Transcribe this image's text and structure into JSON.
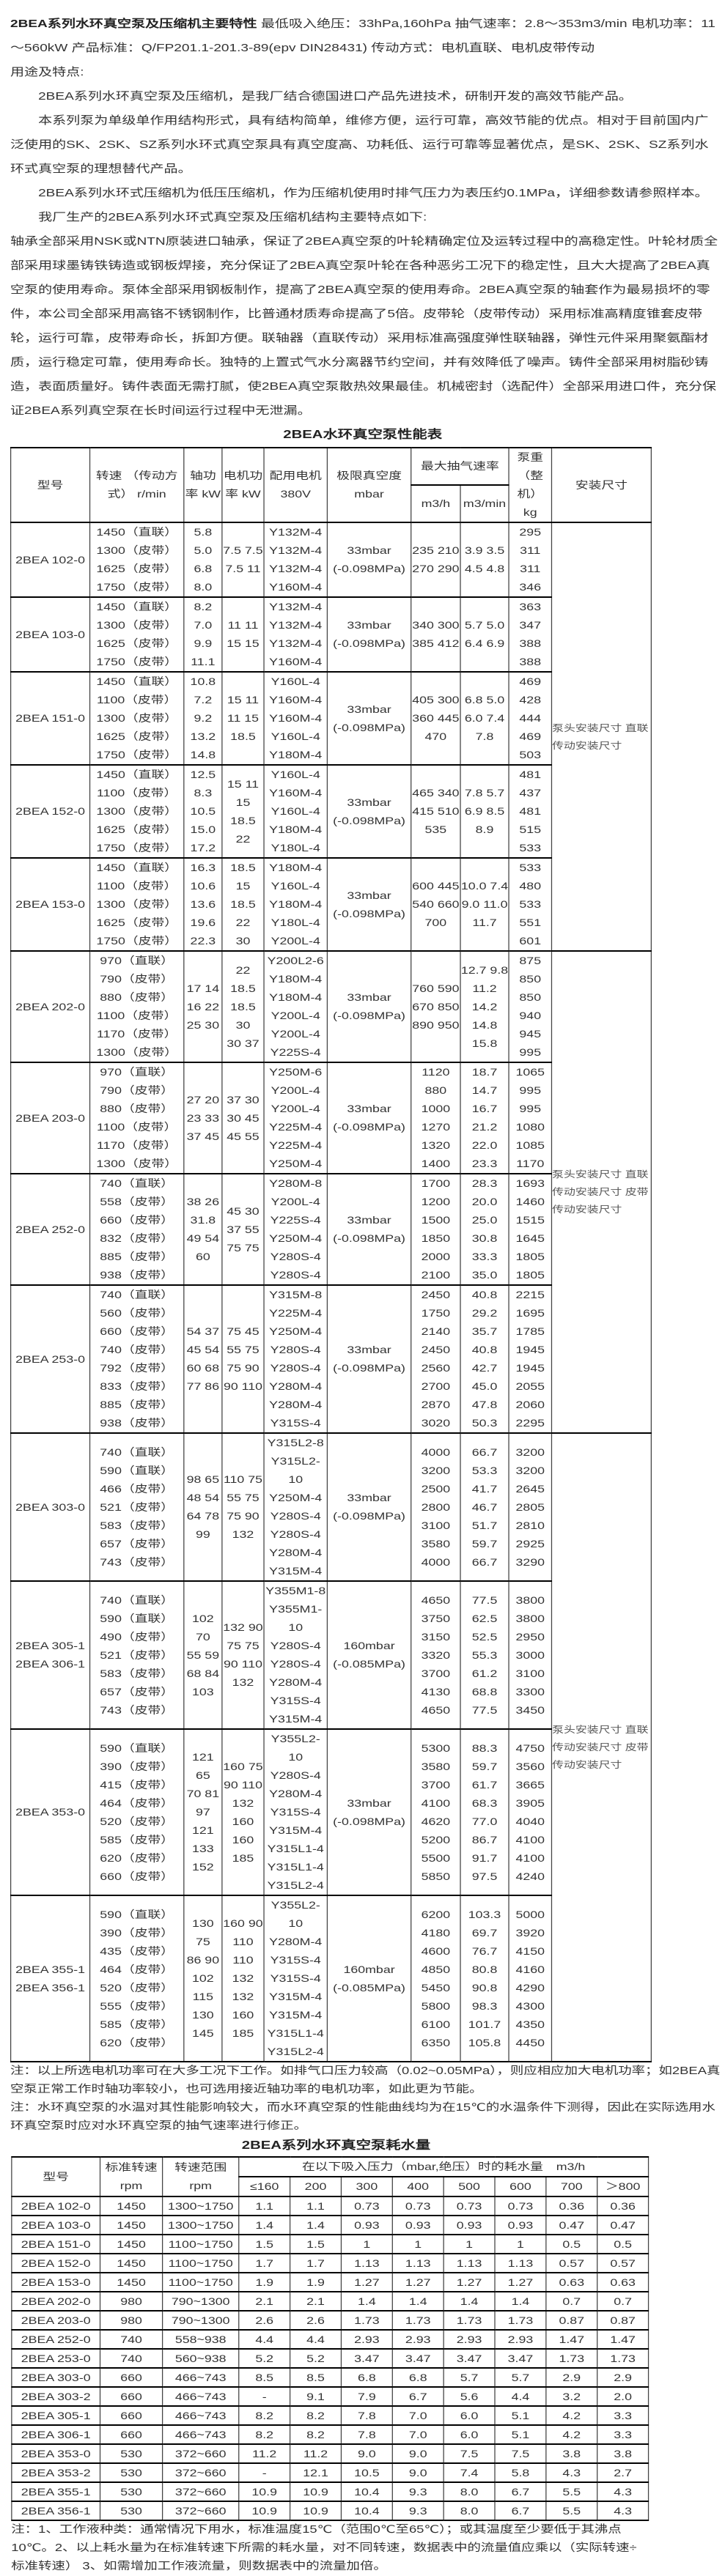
{
  "intro": {
    "title": "2BEA系列水环真空泵及压缩机主要特性",
    "specs": "最低吸入绝压：33hPa,160hPa 抽气速率：2.8～353m3/min 电机功率：11～560kW 产品标准：Q/FP201.1-201.3-89(epv DIN28431) 传动方式：电机直联、电机皮带传动",
    "uses_heading": "用途及特点:",
    "paragraphs": [
      "2BEA系列水环真空泵及压缩机，是我厂结合德国进口产品先进技术，研制开发的高效节能产品。",
      "本系列泵为单级单作用结构形式，具有结构简单，维修方便，运行可靠，高效节能的优点。相对于目前国内广泛使用的SK、2SK、SZ系列水环式真空泵具有真空度高、功耗低、运行可靠等显著优点，是SK、2SK、SZ系列水环式真空泵的理想替代产品。",
      "2BEA系列水环式压缩机为低压压缩机，作为压缩机使用时排气压力为表压约0.1MPa，详细参数请参照样本。",
      "我厂生产的2BEA系列水环式真空泵及压缩机结构主要特点如下:"
    ],
    "structure": "轴承全部采用NSK或NTN原装进口轴承，保证了2BEA真空泵的叶轮精确定位及运转过程中的高稳定性。叶轮材质全部采用球墨铸铁铸造或钢板焊接，充分保证了2BEA真空泵叶轮在各种恶劣工况下的稳定性，且大大提高了2BEA真空泵的使用寿命。泵体全部采用钢板制作，提高了2BEA真空泵的使用寿命。2BEA真空泵的轴套作为最易损坏的零件，本公司全部采用高铬不锈钢制作，比普通材质寿命提高了5倍。皮带轮（皮带传动）采用标准高精度锥套皮带轮，运行可靠，皮带寿命长，拆卸方便。联轴器（直联传动）采用标准高强度弹性联轴器，弹性元件采用聚氨酯材质，运行稳定可靠，使用寿命长。独特的上置式气水分离器节约空间，并有效降低了噪声。铸件全部采用树脂砂铸造，表面质量好。铸件表面无需打腻，使2BEA真空泵散热效果最佳。机械密封（选配件）全部采用进口件，充分保证2BEA系列真空泵在长时间运行过程中无泄漏。"
  },
  "perf_table": {
    "title": "2BEA水环真空泵性能表",
    "headers": {
      "model": "型号",
      "speed": "转速 （传动方式） r/min",
      "shaft_power": "轴功率 kW",
      "motor_power": "电机功率 kW",
      "motor": "配用电机 380V",
      "vacuum": "极限真空度 mbar",
      "capacity": "最大抽气速率",
      "m3h": "m3/h",
      "m3min": "m3/min",
      "weight": "泵重（整机） kg",
      "install": "安装尺寸"
    },
    "install_groups": [
      {
        "text": "泵头安装尺寸 直联传动安装尺寸",
        "rows": 5
      },
      {
        "text": "泵头安装尺寸 直联传动安装尺寸 皮带传动安装尺寸",
        "rows": 4
      },
      {
        "text": "泵头安装尺寸 直联传动安装尺寸 皮带传动安装尺寸",
        "rows": 4
      }
    ],
    "rows": [
      {
        "model": "2BEA 102-0",
        "speed": "1450（直联）\n1300（皮带）\n1625（皮带）\n1750（皮带）",
        "shaft": "5.8 5.0\n6.8 8.0",
        "mpower": "7.5 7.5\n7.5 11",
        "motor": "Y132M-4\nY132M-4\nY132M-4\nY160M-4",
        "vacuum": "33mbar\n(-0.098MPa)",
        "m3h": "235 210\n270 290",
        "m3min": "3.9 3.5\n4.5 4.8",
        "weight": "295 311\n311 346"
      },
      {
        "model": "2BEA 103-0",
        "speed": "1450（直联）\n1300（皮带）\n1625（皮带）\n1750（皮带）",
        "shaft": "8.2 7.0\n9.9\n11.1",
        "mpower": "11 11\n15 15",
        "motor": "Y132M-4\nY132M-4\nY132M-4\nY160M-4",
        "vacuum": "33mbar\n(-0.098MPa)",
        "m3h": "340 300\n385 412",
        "m3min": "5.7 5.0\n6.4 6.9",
        "weight": "363 347\n388 388"
      },
      {
        "model": "2BEA 151-0",
        "speed": "1450（直联）\n1100（皮带）\n1300（皮带）\n1625（皮带）\n1750（皮带）",
        "shaft": "10.8\n7.2 9.2\n13.2\n14.8",
        "mpower": "15 11\n11 15\n18.5",
        "motor": "Y160L-4\nY160M-4\nY160M-4\nY160L-4\nY180M-4",
        "vacuum": "33mbar\n(-0.098MPa)",
        "m3h": "405 300\n360 445\n470",
        "m3min": "6.8 5.0\n6.0 7.4\n7.8",
        "weight": "469 428\n444 469\n503"
      },
      {
        "model": "2BEA 152-0",
        "speed": "1450（直联）\n1100（皮带）\n1300（皮带）\n1625（皮带）\n1750（皮带）",
        "shaft": "12.5\n8.3\n10.5\n15.0\n17.2",
        "mpower": "15 11\n15 18.5\n22",
        "motor": "Y160L-4\nY160M-4\nY160L-4\nY180M-4\nY180L-4",
        "vacuum": "33mbar\n(-0.098MPa)",
        "m3h": "465 340\n415 510\n535",
        "m3min": "7.8 5.7\n6.9 8.5\n8.9",
        "weight": "481 437\n481 515\n533"
      },
      {
        "model": "2BEA 153-0",
        "speed": "1450（直联）\n1100（皮带）\n1300（皮带）\n1625（皮带）\n1750（皮带）",
        "shaft": "16.3\n10.6\n13.6\n19.6\n22.3",
        "mpower": "18.5 15\n18.5 22\n30",
        "motor": "Y180M-4\nY160L-4\nY180M-4\nY180L-4\nY200L-4",
        "vacuum": "33mbar\n(-0.098MPa)",
        "m3h": "600 445\n540 660\n700",
        "m3min": "10.0 7.4\n9.0 11.0\n11.7",
        "weight": "533 480\n533 551\n601"
      },
      {
        "model": "2BEA 202-0",
        "speed": "970（直联）\n790（皮带）\n880（皮带）\n1100（皮带）\n1170（皮带）\n1300（皮带）",
        "shaft": "17 14\n16 22\n25 30",
        "mpower": "22 18.5\n18.5 30\n30 37",
        "motor": "Y200L2-6\nY180M-4\nY180M-4\nY200L-4\nY200L-4\nY225S-4",
        "vacuum": "33mbar\n(-0.098MPa)",
        "m3h": "760 590\n670 850\n890 950",
        "m3min": "12.7 9.8\n11.2\n14.2\n14.8\n15.8",
        "weight": "875 850\n850 940\n945 995"
      },
      {
        "model": "2BEA 203-0",
        "speed": "970（直联）\n790（皮带）\n880（皮带）\n1100（皮带）\n1170（皮带）\n1300（皮带）",
        "shaft": "27 20\n23 33\n37 45",
        "mpower": "37 30\n30 45\n45 55",
        "motor": "Y250M-6\nY200L-4\nY200L-4\nY225M-4\nY225M-4\nY250M-4",
        "vacuum": "33mbar\n(-0.098MPa)",
        "m3h": "1120 880\n1000\n1270\n1320\n1400",
        "m3min": "18.7\n14.7\n16.7\n21.2\n22.0\n23.3",
        "weight": "1065\n995 995\n1080\n1085\n1170"
      },
      {
        "model": "2BEA 252-0",
        "speed": "740（直联）\n558（皮带）\n660（皮带）\n832（皮带）\n885（皮带）\n938（皮带）",
        "shaft": "38 26\n31.8\n49 54\n60",
        "mpower": "45 30\n37 55\n75 75",
        "motor": "Y280M-8\nY200L-4\nY225S-4\nY250M-4\nY280S-4\nY280S-4",
        "vacuum": "33mbar\n(-0.098MPa)",
        "m3h": "1700\n1200\n1500\n1850\n2000\n2100",
        "m3min": "28.3\n20.0\n25.0\n30.8\n33.3\n35.0",
        "weight": "1693\n1460\n1515\n1645\n1805\n1805"
      },
      {
        "model": "2BEA 253-0",
        "speed": "740（直联）\n560（皮带）\n660（皮带）\n740（皮带）\n792（皮带）\n833（皮带）\n885（皮带）\n938（皮带）",
        "shaft": "54 37\n45 54\n60 68\n77 86",
        "mpower": "75 45\n55 75\n75 90\n90 110",
        "motor": "Y315M-8\nY225M-4\nY250M-4\nY280S-4\nY280S-4\nY280M-4\nY280M-4\nY315S-4",
        "vacuum": "33mbar\n(-0.098MPa)",
        "m3h": "2450\n1750\n2140\n2450\n2560\n2700\n2870\n3020",
        "m3min": "40.8\n29.2\n35.7\n40.8\n42.7\n45.0\n47.8\n50.3",
        "weight": "2215\n1695\n1785\n1945\n1945\n2055\n2060\n2295"
      },
      {
        "model": "2BEA 303-0",
        "speed": "740（直联）\n590（直联）\n466（皮带）\n521（皮带）\n583（皮带）\n657（皮带）\n743（皮带）",
        "shaft": "98 65\n48 54\n64 78\n99",
        "mpower": "110 75\n55 75\n75 90\n132",
        "motor": "Y315L2-8\nY315L2-10\nY250M-4\nY280S-4\nY280S-4\nY280M-4\nY315M-4",
        "vacuum": "33mbar\n(-0.098MPa)",
        "m3h": "4000\n3200\n2500\n2800\n3100\n3580\n4000",
        "m3min": "66.7\n53.3\n41.7\n46.7\n51.7\n59.7\n66.7",
        "weight": "3200\n3200\n2645\n2805\n2810\n2925\n3290"
      },
      {
        "model": "2BEA 305-1\n2BEA 306-1",
        "speed": "740（直联）\n590（直联）\n490（皮带）\n521（皮带）\n583（皮带）\n657（皮带）\n743（皮带）",
        "shaft": "102 70\n55 59\n68 84\n103",
        "mpower": "132 90\n75 75\n90 110\n132",
        "motor": "Y355M1-8\nY355M1-10\nY280S-4\nY280S-4\nY280M-4\nY315S-4\nY315M-4",
        "vacuum": "160mbar\n(-0.085MPa)",
        "m3h": "4650\n3750\n3150\n3320\n3700\n4130\n4650",
        "m3min": "77.5\n62.5\n52.5\n55.3\n61.2\n68.8\n77.5",
        "weight": "3800\n3800\n2950\n3000\n3100\n3300\n3450"
      },
      {
        "model": "2BEA 353-0",
        "speed": "590（直联）\n390（皮带）\n415（皮带）\n464（皮带）\n520（皮带）\n585（皮带）\n620（皮带）\n660（皮带）",
        "shaft": "121 65\n70 81\n97 121\n133\n152",
        "mpower": "160 75\n90 110\n132\n160\n160\n185",
        "motor": "Y355L2-10\nY280S-4\nY280M-4\nY315S-4\nY315M-4\nY315L1-4\nY315L1-4\nY315L2-4",
        "vacuum": "33mbar\n(-0.098MPa)",
        "m3h": "5300\n3580\n3700\n4100\n4620\n5200\n5500\n5850",
        "m3min": "88.3\n59.7\n61.7\n68.3\n77.0\n86.7\n91.7\n97.5",
        "weight": "4750\n3560\n3665\n3905\n4040\n4100\n4100\n4240"
      },
      {
        "model": "2BEA 355-1\n2BEA 356-1",
        "speed": "590（直联）\n390（皮带）\n435（皮带）\n464（皮带）\n520（皮带）\n555（皮带）\n585（皮带）\n620（皮带）",
        "shaft": "130 75\n86 90\n102\n115\n130\n145",
        "mpower": "160 90\n110 110\n132\n132\n160\n185",
        "motor": "Y355L2-10\nY280M-4\nY315S-4\nY315S-4\nY315M-4\nY315M-4\nY315L1-4\nY315L2-4",
        "vacuum": "160mbar\n(-0.085MPa)",
        "m3h": "6200\n4180\n4600\n4850\n5450\n5800\n6100\n6350",
        "m3min": "103.3\n69.7\n76.7\n80.8\n90.8\n98.3\n101.7\n105.8",
        "weight": "5000\n3920\n4150\n4160\n4290\n4300\n4350\n4450"
      }
    ],
    "notes": [
      "注：以上所选电机功率可在大多工况下工作。如排气口压力较高（0.02~0.05MPa），则应相应加大电机功率；如2BEA真空泵正常工作时轴功率较小，也可选用接近轴功率的电机功率，如此更为节能。",
      "注：水环真空泵的水温对其性能影响较大，而水环真空泵的性能曲线均为在15℃的水温条件下测得，因此在实际选用水环真空泵时应对水环真空泵的抽气速率进行修正。"
    ]
  },
  "water_table": {
    "title": "2BEA系列水环真空泵耗水量",
    "headers": {
      "model": "型号",
      "std_speed": "标准转速 rpm",
      "speed_range": "转速范围 rpm",
      "consumption": "在以下吸入压力（mbar,绝压）时的耗水量　m3/h",
      "pressures": [
        "≤160",
        "200",
        "300",
        "400",
        "500",
        "600",
        "700",
        "＞800"
      ]
    },
    "rows": [
      [
        "2BEA 102-0",
        "1450",
        "1300~1750",
        "1.1",
        "1.1",
        "0.73",
        "0.73",
        "0.73",
        "0.73",
        "0.36",
        "0.36"
      ],
      [
        "2BEA 103-0",
        "1450",
        "1300~1750",
        "1.4",
        "1.4",
        "0.93",
        "0.93",
        "0.93",
        "0.93",
        "0.47",
        "0.47"
      ],
      [
        "2BEA 151-0",
        "1450",
        "1100~1750",
        "1.5",
        "1.5",
        "1",
        "1",
        "1",
        "1",
        "0.5",
        "0.5"
      ],
      [
        "2BEA 152-0",
        "1450",
        "1100~1750",
        "1.7",
        "1.7",
        "1.13",
        "1.13",
        "1.13",
        "1.13",
        "0.57",
        "0.57"
      ],
      [
        "2BEA 153-0",
        "1450",
        "1100~1750",
        "1.9",
        "1.9",
        "1.27",
        "1.27",
        "1.27",
        "1.27",
        "0.63",
        "0.63"
      ],
      [
        "2BEA 202-0",
        "980",
        "790~1300",
        "2.1",
        "2.1",
        "1.4",
        "1.4",
        "1.4",
        "1.4",
        "0.7",
        "0.7"
      ],
      [
        "2BEA 203-0",
        "980",
        "790~1300",
        "2.6",
        "2.6",
        "1.73",
        "1.73",
        "1.73",
        "1.73",
        "0.87",
        "0.87"
      ],
      [
        "2BEA 252-0",
        "740",
        "558~938",
        "4.4",
        "4.4",
        "2.93",
        "2.93",
        "2.93",
        "2.93",
        "1.47",
        "1.47"
      ],
      [
        "2BEA 253-0",
        "740",
        "560~938",
        "5.2",
        "5.2",
        "3.47",
        "3.47",
        "3.47",
        "3.47",
        "1.73",
        "1.73"
      ],
      [
        "2BEA 303-0",
        "660",
        "466~743",
        "8.5",
        "8.5",
        "6.8",
        "6.8",
        "5.7",
        "5.7",
        "2.9",
        "2.9"
      ],
      [
        "2BEA 303-2",
        "660",
        "466~743",
        "-",
        "9.1",
        "7.9",
        "6.7",
        "5.6",
        "4.4",
        "3.2",
        "2.0"
      ],
      [
        "2BEA 305-1",
        "660",
        "466~743",
        "8.2",
        "8.2",
        "7.8",
        "7.0",
        "6.0",
        "5.1",
        "4.2",
        "3.3"
      ],
      [
        "2BEA 306-1",
        "660",
        "466~743",
        "8.2",
        "8.2",
        "7.8",
        "7.0",
        "6.0",
        "5.1",
        "4.2",
        "3.3"
      ],
      [
        "2BEA 353-0",
        "530",
        "372~660",
        "11.2",
        "11.2",
        "9.0",
        "9.0",
        "7.5",
        "7.5",
        "3.8",
        "3.8"
      ],
      [
        "2BEA 353-2",
        "530",
        "372~660",
        "-",
        "12.1",
        "10.5",
        "9.0",
        "7.4",
        "5.8",
        "4.3",
        "2.7"
      ],
      [
        "2BEA 355-1",
        "530",
        "372~660",
        "10.9",
        "10.9",
        "10.4",
        "9.3",
        "8.0",
        "6.7",
        "5.5",
        "4.3"
      ],
      [
        "2BEA 356-1",
        "530",
        "372~660",
        "10.9",
        "10.9",
        "10.4",
        "9.3",
        "8.0",
        "6.7",
        "5.5",
        "4.3"
      ]
    ],
    "note": "注：1、工作液种类：通常情况下用水，标准温度15℃（范围0℃至65℃）；或其温度至少要低于其沸点10℃。2、以上耗水量为在标准转速下所需的耗水量，对不同转速，数据表中的流量值应乘以（实际转速÷标准转速） 3、如需增加工作液流量，则数据表中的流量加倍。"
  }
}
